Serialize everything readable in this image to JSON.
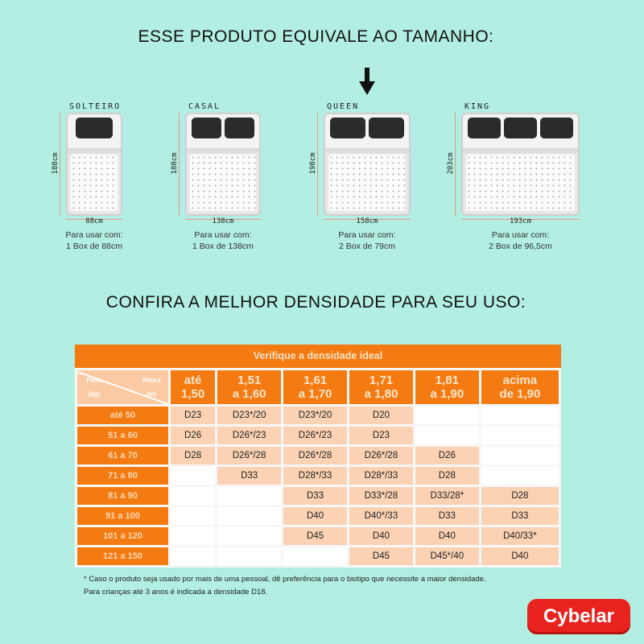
{
  "headline_size": "ESSE PRODUTO EQUIVALE AO TAMANHO:",
  "selected_size": "QUEEN",
  "beds": [
    {
      "name": "SOLTEIRO",
      "length": "188cm",
      "width": "88cm",
      "use_label": "Para usar com:",
      "use_value": "1 Box de 88cm",
      "pillows": 1
    },
    {
      "name": "CASAL",
      "length": "188cm",
      "width": "138cm",
      "use_label": "Para usar com:",
      "use_value": "1 Box de 138cm",
      "pillows": 2
    },
    {
      "name": "QUEEN",
      "length": "198cm",
      "width": "158cm",
      "use_label": "Para usar com:",
      "use_value": "2 Box de 79cm",
      "pillows": 2
    },
    {
      "name": "KING",
      "length": "203cm",
      "width": "193cm",
      "use_label": "Para usar com:",
      "use_value": "2 Box de 96,5cm",
      "pillows": 3
    }
  ],
  "headline_density": "CONFIRA A MELHOR DENSIDADE PARA SEU USO:",
  "table": {
    "title": "Verifique a densidade ideal",
    "corner_top": "Altura (m)",
    "corner_bottom": "Peso (kg)",
    "columns": [
      [
        "até",
        "1,50"
      ],
      [
        "1,51",
        "a 1,60"
      ],
      [
        "1,61",
        "a 1,70"
      ],
      [
        "1,71",
        "a 1,80"
      ],
      [
        "1,81",
        "a 1,90"
      ],
      [
        "acima",
        "de 1,90"
      ]
    ],
    "rows": [
      {
        "label": "até 50",
        "values": [
          "D23",
          "D23*/20",
          "D23*/20",
          "D20",
          "",
          ""
        ]
      },
      {
        "label": "51 a 60",
        "values": [
          "D26",
          "D26*/23",
          "D26*/23",
          "D23",
          "",
          ""
        ]
      },
      {
        "label": "61 a 70",
        "values": [
          "D28",
          "D26*/28",
          "D26*/28",
          "D26*/28",
          "D26",
          ""
        ]
      },
      {
        "label": "71 a 80",
        "values": [
          "",
          "D33",
          "D28*/33",
          "D28*/33",
          "D28",
          ""
        ]
      },
      {
        "label": "81 a 90",
        "values": [
          "",
          "",
          "D33",
          "D33*/28",
          "D33/28*",
          "D28"
        ]
      },
      {
        "label": "91 a 100",
        "values": [
          "",
          "",
          "D40",
          "D40*/33",
          "D33",
          "D33"
        ]
      },
      {
        "label": "101 a 120",
        "values": [
          "",
          "",
          "D45",
          "D40",
          "D40",
          "D40/33*"
        ]
      },
      {
        "label": "121 a 150",
        "values": [
          "",
          "",
          "",
          "D45",
          "D45*/40",
          "D40"
        ]
      }
    ]
  },
  "footnote_1": "* Caso o produto seja usado por mais de uma pessoal, dê preferência para o biotipo que necessite a maior densidade.",
  "footnote_2": "Para crianças até 3 anos é indicada a densidade D18.",
  "brand": "Cybelar",
  "colors": {
    "background": "#b2eee1",
    "table_orange": "#f47b12",
    "cell_peach": "#fbd2b3",
    "brand_red": "#e8231f"
  }
}
